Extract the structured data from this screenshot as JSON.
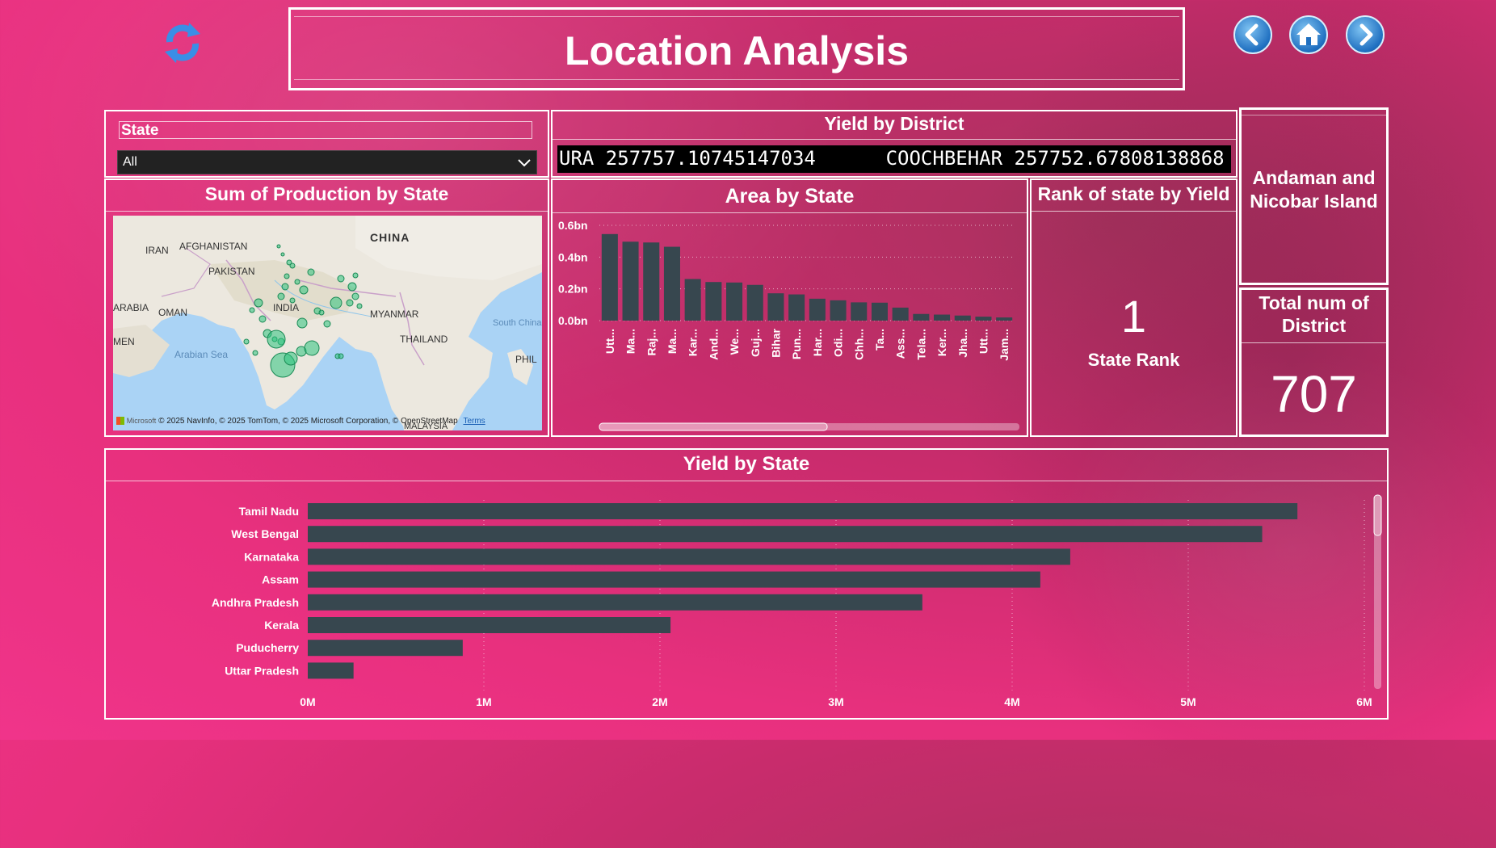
{
  "header": {
    "title": "Location Analysis"
  },
  "nav": {
    "refresh": "refresh-icon",
    "back": "arrow-left-icon",
    "home": "home-icon",
    "forward": "arrow-right-icon"
  },
  "slicer": {
    "label": "State",
    "selected": "All"
  },
  "yield_by_district": {
    "title": "Yield by District",
    "ticker": "URA 257757.10745147034      COOCHBEHAR 257752.67808138868"
  },
  "map": {
    "title": "Sum of Production by State",
    "labels": {
      "china": "CHINA",
      "iran": "IRAN",
      "afghanistan": "AFGHANISTAN",
      "pakistan": "PAKISTAN",
      "india": "INDIA",
      "arabia": "ARABIA",
      "oman": "OMAN",
      "men": "MEN",
      "myanmar": "MYANMAR",
      "thailand": "THAILAND",
      "south_china_sea": "South China Sea",
      "arabian_sea": "Arabian Sea",
      "phil": "PHIL",
      "malaysia": "MALAYSIA"
    },
    "attribution": "© 2025 NavInfo, © 2025 TomTom, © 2025 Microsoft Corporation, © OpenStreetMap",
    "terms": "Terms",
    "ms_logo": "Microsoft"
  },
  "rank": {
    "title": "Rank of state by Yield",
    "value": "1",
    "label": "State Rank"
  },
  "selected_state": {
    "name": "Andaman and Nicobar Island"
  },
  "district_card": {
    "title": "Total num of District",
    "value": "707"
  },
  "colors": {
    "bar": "#37474f",
    "accent": "#2ec27e",
    "panel_border": "#ffffff"
  },
  "chart_data": [
    {
      "type": "bar",
      "title": "Area by State",
      "categories": [
        "Utt...",
        "Ma...",
        "Raj...",
        "Ma...",
        "Kar...",
        "And...",
        "We...",
        "Guj...",
        "Bihar",
        "Pun...",
        "Har...",
        "Odi...",
        "Chh...",
        "Ta...",
        "Ass...",
        "Tela...",
        "Ker...",
        "Jha...",
        "Utt...",
        "Jam..."
      ],
      "values": [
        0.545,
        0.497,
        0.492,
        0.465,
        0.262,
        0.243,
        0.24,
        0.225,
        0.172,
        0.165,
        0.138,
        0.128,
        0.115,
        0.113,
        0.082,
        0.042,
        0.038,
        0.032,
        0.025,
        0.02
      ],
      "yticks": [
        "0.0bn",
        "0.2bn",
        "0.4bn",
        "0.6bn"
      ],
      "ylim": [
        0,
        0.6
      ],
      "grid": true
    },
    {
      "type": "bar",
      "title": "Yield by State",
      "orientation": "horizontal",
      "categories": [
        "Tamil Nadu",
        "West Bengal",
        "Karnataka",
        "Assam",
        "Andhra Pradesh",
        "Kerala",
        "Puducherry",
        "Uttar Pradesh"
      ],
      "values": [
        5620000,
        5420000,
        4330000,
        4160000,
        3490000,
        2060000,
        880000,
        260000
      ],
      "xticks": [
        "0M",
        "1M",
        "2M",
        "3M",
        "4M",
        "5M",
        "6M"
      ],
      "xlim": [
        0,
        6000000
      ],
      "grid": true
    }
  ]
}
